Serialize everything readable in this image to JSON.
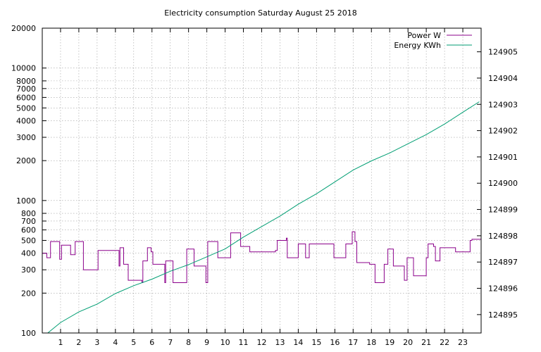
{
  "chart_data": {
    "type": "line",
    "title": "Electricity consumption Saturday August 25 2018",
    "xlabel": "",
    "ylabel": "",
    "x_ticks": [
      "1",
      "2",
      "3",
      "4",
      "5",
      "6",
      "7",
      "8",
      "9",
      "10",
      "11",
      "12",
      "13",
      "14",
      "15",
      "16",
      "17",
      "18",
      "19",
      "20",
      "21",
      "22",
      "23"
    ],
    "xlim": [
      0,
      24
    ],
    "y_left": {
      "scale": "log",
      "range": [
        100,
        20000
      ],
      "tick_values": [
        100,
        200,
        300,
        400,
        500,
        600,
        700,
        800,
        1000,
        2000,
        3000,
        4000,
        5000,
        6000,
        7000,
        8000,
        10000,
        20000
      ],
      "tick_labels": [
        "100",
        "200",
        "300",
        "400",
        "500",
        "600",
        "700",
        "800",
        "1000",
        "2000",
        "3000",
        "4000",
        "5000",
        "6000",
        "7000",
        "8000",
        "10000",
        "20000"
      ]
    },
    "y_right": {
      "scale": "linear",
      "range": [
        124894.3,
        124905.9
      ],
      "tick_values": [
        124895,
        124896,
        124897,
        124898,
        124899,
        124900,
        124901,
        124902,
        124903,
        124904,
        124905
      ],
      "tick_labels": [
        "124895",
        "124896",
        "124897",
        "124898",
        "124899",
        "124900",
        "124901",
        "124902",
        "124903",
        "124904",
        "124905"
      ]
    },
    "grid": true,
    "legend_position": "top-right",
    "series": [
      {
        "name": "Power W",
        "axis": "left",
        "color": "#8b008b",
        "step": true,
        "points": [
          [
            0.0,
            400
          ],
          [
            0.25,
            370
          ],
          [
            0.45,
            490
          ],
          [
            0.95,
            360
          ],
          [
            1.05,
            460
          ],
          [
            1.55,
            390
          ],
          [
            1.8,
            490
          ],
          [
            2.25,
            300
          ],
          [
            3.0,
            300
          ],
          [
            3.05,
            420
          ],
          [
            4.15,
            420
          ],
          [
            4.2,
            320
          ],
          [
            4.25,
            440
          ],
          [
            4.45,
            330
          ],
          [
            4.7,
            250
          ],
          [
            5.45,
            240
          ],
          [
            5.5,
            350
          ],
          [
            5.75,
            440
          ],
          [
            5.95,
            410
          ],
          [
            6.05,
            330
          ],
          [
            6.7,
            240
          ],
          [
            6.75,
            350
          ],
          [
            7.15,
            240
          ],
          [
            7.9,
            430
          ],
          [
            8.3,
            320
          ],
          [
            8.95,
            240
          ],
          [
            9.05,
            490
          ],
          [
            9.6,
            370
          ],
          [
            10.3,
            570
          ],
          [
            10.85,
            450
          ],
          [
            11.35,
            410
          ],
          [
            12.75,
            420
          ],
          [
            12.85,
            500
          ],
          [
            13.35,
            520
          ],
          [
            13.4,
            370
          ],
          [
            14.0,
            470
          ],
          [
            14.4,
            370
          ],
          [
            14.6,
            470
          ],
          [
            15.95,
            370
          ],
          [
            16.6,
            470
          ],
          [
            16.95,
            580
          ],
          [
            17.1,
            490
          ],
          [
            17.2,
            340
          ],
          [
            17.9,
            330
          ],
          [
            18.2,
            240
          ],
          [
            18.7,
            330
          ],
          [
            18.9,
            430
          ],
          [
            19.2,
            320
          ],
          [
            19.8,
            250
          ],
          [
            19.95,
            370
          ],
          [
            20.3,
            270
          ],
          [
            21.0,
            370
          ],
          [
            21.1,
            470
          ],
          [
            21.4,
            450
          ],
          [
            21.5,
            350
          ],
          [
            21.75,
            440
          ],
          [
            22.6,
            410
          ],
          [
            23.4,
            500
          ],
          [
            23.5,
            510
          ],
          [
            23.9,
            510
          ]
        ]
      },
      {
        "name": "Energy KWh",
        "axis": "right",
        "color": "#009e73",
        "step": false,
        "points": [
          [
            0.3,
            124894.3
          ],
          [
            1.0,
            124894.7
          ],
          [
            2.0,
            124895.1
          ],
          [
            3.0,
            124895.4
          ],
          [
            4.0,
            124895.8
          ],
          [
            5.0,
            124896.1
          ],
          [
            6.0,
            124896.35
          ],
          [
            7.0,
            124896.65
          ],
          [
            8.0,
            124896.9
          ],
          [
            9.0,
            124897.2
          ],
          [
            10.0,
            124897.5
          ],
          [
            11.0,
            124897.95
          ],
          [
            12.0,
            124898.35
          ],
          [
            13.0,
            124898.75
          ],
          [
            14.0,
            124899.2
          ],
          [
            15.0,
            124899.6
          ],
          [
            16.0,
            124900.05
          ],
          [
            17.0,
            124900.5
          ],
          [
            18.0,
            124900.85
          ],
          [
            19.0,
            124901.15
          ],
          [
            20.0,
            124901.5
          ],
          [
            21.0,
            124901.85
          ],
          [
            22.0,
            124902.25
          ],
          [
            23.0,
            124902.7
          ],
          [
            23.9,
            124903.1
          ]
        ]
      }
    ]
  }
}
